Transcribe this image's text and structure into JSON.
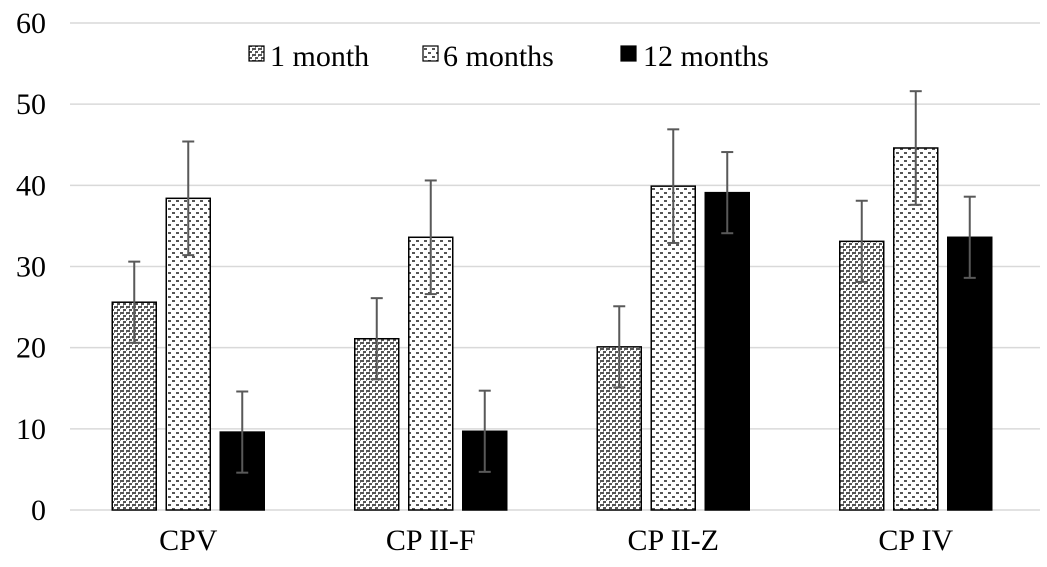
{
  "chart_data": {
    "type": "bar",
    "categories": [
      "CPV",
      "CP II-F",
      "CP II-Z",
      "CP IV"
    ],
    "series": [
      {
        "name": "1 month",
        "values": [
          25.6,
          21.1,
          20.1,
          33.1
        ],
        "errors": [
          5.0,
          5.0,
          5.0,
          5.0
        ],
        "pattern": "dense-dots"
      },
      {
        "name": "6 months",
        "values": [
          38.4,
          33.6,
          39.9,
          44.6
        ],
        "errors": [
          7.0,
          7.0,
          7.0,
          7.0
        ],
        "pattern": "sparse-dashes"
      },
      {
        "name": "12 months",
        "values": [
          9.6,
          9.7,
          39.1,
          33.6
        ],
        "errors": [
          5.0,
          5.0,
          5.0,
          5.0
        ],
        "pattern": "solid"
      }
    ],
    "ylim": [
      0,
      60
    ],
    "yticks": [
      "0",
      "10",
      "20",
      "30",
      "40",
      "50",
      "60"
    ],
    "grid": true,
    "legend_position": "top-center",
    "xlabel": "",
    "ylabel": "",
    "title": "",
    "colors": {
      "bar_stroke": "#000000",
      "solid_fill": "#000000",
      "pattern_ink": "#4d4d4d",
      "grid": "#d9d9d9",
      "error_bar": "#595959"
    }
  }
}
